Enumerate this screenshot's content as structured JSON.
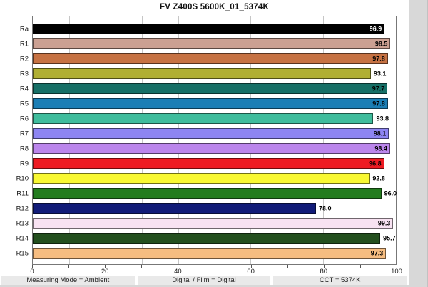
{
  "window": {
    "figure_bg": "#ffffff",
    "outer_bg": "#d8d8d8"
  },
  "chart_data": {
    "type": "bar",
    "orientation": "horizontal",
    "title": "FV Z400S 5600K_01_5374K",
    "xlabel": "",
    "ylabel": "",
    "xlim": [
      0,
      100
    ],
    "x_tick_labels": [
      0,
      20,
      40,
      60,
      80,
      100
    ],
    "gridline_values": [
      10,
      20,
      30,
      40,
      50,
      60,
      70,
      80,
      90
    ],
    "grid": true,
    "categories": [
      "Ra",
      "R1",
      "R2",
      "R3",
      "R4",
      "R5",
      "R6",
      "R7",
      "R8",
      "R9",
      "R10",
      "R11",
      "R12",
      "R13",
      "R14",
      "R15"
    ],
    "values": [
      96.9,
      98.5,
      97.8,
      93.1,
      97.7,
      97.8,
      93.8,
      98.1,
      98.4,
      96.8,
      92.8,
      96.0,
      78.0,
      99.3,
      95.7,
      97.3
    ],
    "value_labels": [
      "96.9",
      "98.5",
      "97.8",
      "93.1",
      "97.7",
      "97.8",
      "93.8",
      "98.1",
      "98.4",
      "96.8",
      "92.8",
      "96.0",
      "78.0",
      "99.3",
      "95.7",
      "97.3"
    ],
    "bar_colors": [
      "#000000",
      "#cba092",
      "#c67243",
      "#b0af33",
      "#166f66",
      "#1b7eb5",
      "#3fbc9c",
      "#8d85f2",
      "#bb86ec",
      "#ee1b22",
      "#f8f832",
      "#237c1e",
      "#111b78",
      "#f8e2f2",
      "#234f1e",
      "#f6bd81"
    ],
    "label_inside": [
      true,
      true,
      true,
      false,
      true,
      true,
      false,
      true,
      true,
      true,
      false,
      false,
      false,
      true,
      false,
      true
    ],
    "value_label_colors": [
      "#ffffff",
      "#000000",
      "#000000",
      "#000000",
      "#000000",
      "#000000",
      "#000000",
      "#000000",
      "#000000",
      "#000000",
      "#000000",
      "#000000",
      "#000000",
      "#000000",
      "#000000",
      "#000000"
    ]
  },
  "footer": {
    "items": [
      "Measuring Mode = Ambient",
      "Digital / Film = Digital",
      "CCT = 5374K"
    ]
  }
}
